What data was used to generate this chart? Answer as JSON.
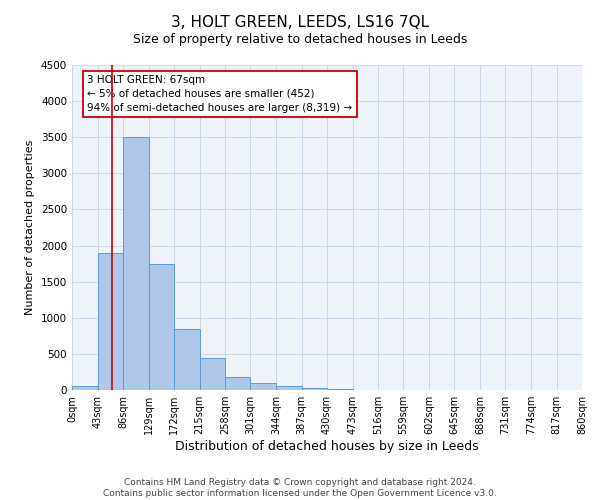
{
  "title": "3, HOLT GREEN, LEEDS, LS16 7QL",
  "subtitle": "Size of property relative to detached houses in Leeds",
  "xlabel": "Distribution of detached houses by size in Leeds",
  "ylabel": "Number of detached properties",
  "bin_edges": [
    0,
    43,
    86,
    129,
    172,
    215,
    258,
    301,
    344,
    387,
    430,
    473,
    516,
    559,
    602,
    645,
    688,
    731,
    774,
    817,
    860
  ],
  "bar_heights": [
    50,
    1900,
    3500,
    1750,
    850,
    450,
    180,
    100,
    60,
    30,
    20,
    5,
    0,
    0,
    0,
    0,
    0,
    0,
    0,
    0
  ],
  "bar_color": "#aec6e8",
  "bar_edgecolor": "#5b9bd5",
  "ylim": [
    0,
    4500
  ],
  "yticks": [
    0,
    500,
    1000,
    1500,
    2000,
    2500,
    3000,
    3500,
    4000,
    4500
  ],
  "property_size": 67,
  "red_line_color": "#cc0000",
  "annotation_line1": "3 HOLT GREEN: 67sqm",
  "annotation_line2": "← 5% of detached houses are smaller (452)",
  "annotation_line3": "94% of semi-detached houses are larger (8,319) →",
  "annotation_box_color": "#cc0000",
  "footer_line1": "Contains HM Land Registry data © Crown copyright and database right 2024.",
  "footer_line2": "Contains public sector information licensed under the Open Government Licence v3.0.",
  "background_color": "#eef2f9",
  "grid_color": "#c8d4e8",
  "title_fontsize": 11,
  "subtitle_fontsize": 9,
  "tick_label_fontsize": 7,
  "ylabel_fontsize": 8,
  "xlabel_fontsize": 9,
  "annotation_fontsize": 7.5,
  "footer_fontsize": 6.5
}
